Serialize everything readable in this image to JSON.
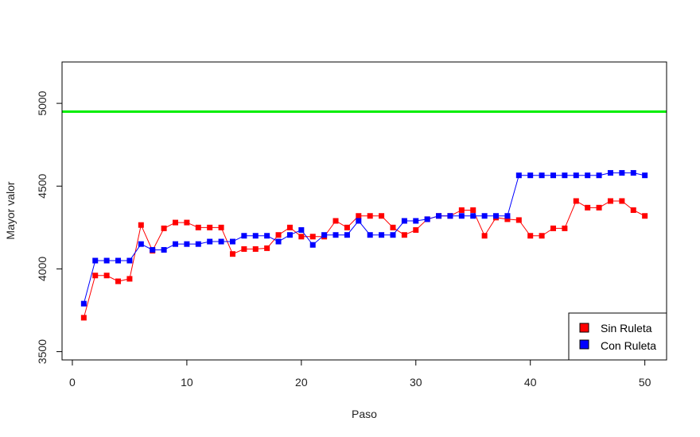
{
  "chart_data": {
    "type": "line",
    "title": "",
    "xlabel": "Paso",
    "ylabel": "Mayor valor",
    "xlim": [
      -0.9,
      51.9
    ],
    "ylim": [
      3450,
      5250
    ],
    "x_ticks": [
      0,
      10,
      20,
      30,
      40,
      50
    ],
    "y_ticks": [
      3500,
      4000,
      4500,
      5000
    ],
    "grid": false,
    "legend_position": "bottom-right",
    "reference_line": {
      "y": 4950,
      "color": "#00ee00"
    },
    "x": [
      1,
      2,
      3,
      4,
      5,
      6,
      7,
      8,
      9,
      10,
      11,
      12,
      13,
      14,
      15,
      16,
      17,
      18,
      19,
      20,
      21,
      22,
      23,
      24,
      25,
      26,
      27,
      28,
      29,
      30,
      31,
      32,
      33,
      34,
      35,
      36,
      37,
      38,
      39,
      40,
      41,
      42,
      43,
      44,
      45,
      46,
      47,
      48,
      49,
      50
    ],
    "series": [
      {
        "name": "Sin Ruleta",
        "color": "#ff0000",
        "values": [
          3705,
          3960,
          3960,
          3925,
          3940,
          4265,
          4110,
          4245,
          4280,
          4280,
          4250,
          4250,
          4250,
          4090,
          4120,
          4120,
          4125,
          4205,
          4250,
          4195,
          4195,
          4195,
          4290,
          4250,
          4320,
          4320,
          4320,
          4250,
          4205,
          4235,
          4300,
          4320,
          4320,
          4355,
          4355,
          4200,
          4310,
          4300,
          4295,
          4200,
          4200,
          4245,
          4245,
          4410,
          4370,
          4370,
          4410,
          4410,
          4355,
          4320
        ]
      },
      {
        "name": "Con Ruleta",
        "color": "#0000ff",
        "values": [
          3790,
          4050,
          4050,
          4050,
          4050,
          4150,
          4115,
          4115,
          4150,
          4150,
          4150,
          4165,
          4165,
          4165,
          4200,
          4200,
          4200,
          4165,
          4205,
          4235,
          4145,
          4205,
          4205,
          4205,
          4290,
          4205,
          4205,
          4205,
          4290,
          4290,
          4300,
          4320,
          4320,
          4320,
          4320,
          4320,
          4320,
          4320,
          4565,
          4565,
          4565,
          4565,
          4565,
          4565,
          4565,
          4565,
          4580,
          4580,
          4580,
          4565
        ]
      }
    ]
  }
}
